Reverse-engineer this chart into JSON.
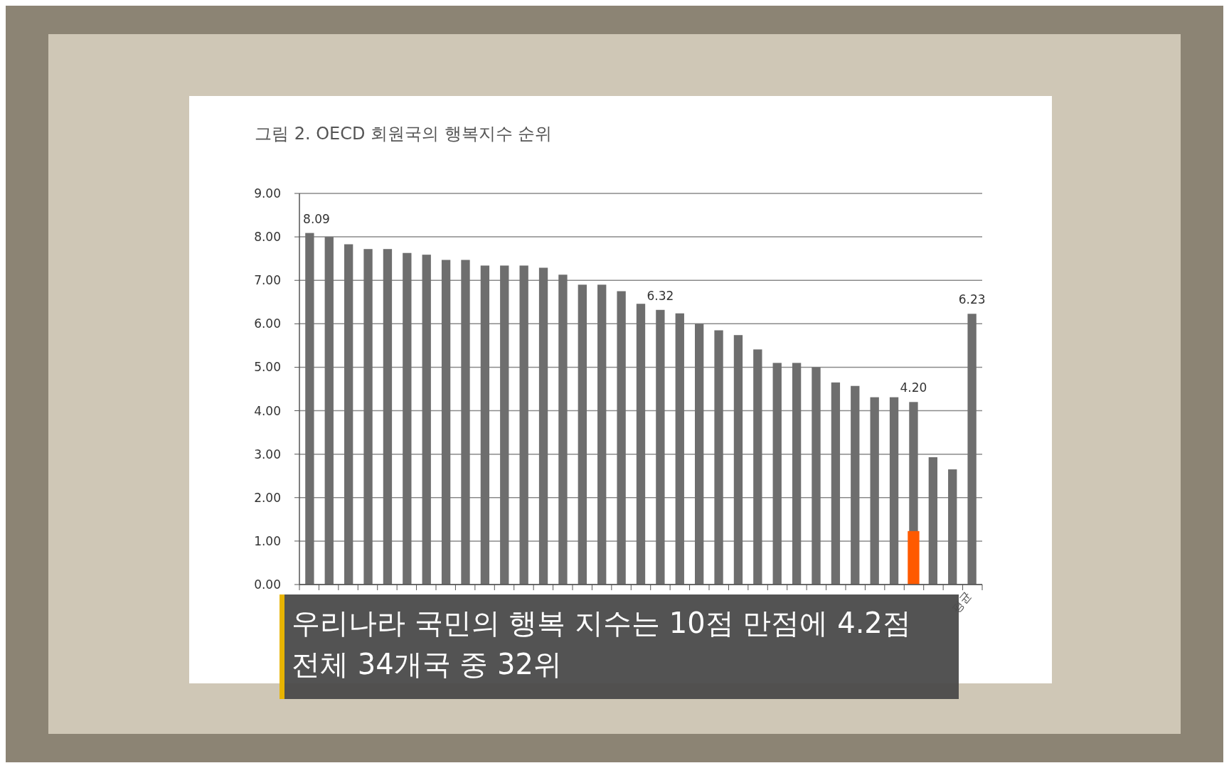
{
  "chart_data": {
    "type": "bar",
    "title": "그림 2.  OECD 회원국의 행복지수 순위",
    "categories": [
      null,
      null,
      null,
      null,
      null,
      null,
      null,
      null,
      null,
      null,
      null,
      null,
      null,
      null,
      null,
      null,
      null,
      null,
      null,
      null,
      null,
      null,
      null,
      null,
      null,
      null,
      null,
      null,
      null,
      null,
      null,
      null,
      null,
      null,
      "평균"
    ],
    "series": [
      {
        "color": "#6e6e6e",
        "values": [
          8.09,
          8.0,
          7.83,
          7.72,
          7.72,
          7.63,
          7.59,
          7.47,
          7.47,
          7.34,
          7.34,
          7.34,
          7.29,
          7.13,
          6.9,
          6.9,
          6.75,
          6.46,
          6.32,
          6.24,
          6.0,
          5.85,
          5.74,
          5.41,
          5.1,
          5.1,
          5.0,
          4.65,
          4.57,
          4.31,
          4.31,
          4.2,
          2.93,
          2.65,
          6.23
        ],
        "value_labels": [
          "8.09",
          null,
          null,
          null,
          null,
          null,
          null,
          null,
          null,
          null,
          null,
          null,
          null,
          null,
          null,
          null,
          null,
          null,
          "6.32",
          null,
          null,
          null,
          null,
          null,
          null,
          null,
          null,
          null,
          null,
          null,
          null,
          "4.20",
          null,
          null,
          "6.23"
        ]
      },
      {
        "color": "#ff5a00",
        "values": [
          null,
          null,
          null,
          null,
          null,
          null,
          null,
          null,
          null,
          null,
          null,
          null,
          null,
          null,
          null,
          null,
          null,
          null,
          null,
          null,
          null,
          null,
          null,
          null,
          null,
          null,
          null,
          null,
          null,
          null,
          null,
          1.23,
          null,
          null,
          null
        ]
      }
    ],
    "ylim": [
      0,
      9
    ],
    "yticks": [
      {
        "value": 0,
        "label": "0.00"
      },
      {
        "value": 1,
        "label": "1.00"
      },
      {
        "value": 2,
        "label": "2.00"
      },
      {
        "value": 3,
        "label": "3.00"
      },
      {
        "value": 4,
        "label": "4.00"
      },
      {
        "value": 5,
        "label": "5.00"
      },
      {
        "value": 6,
        "label": "6.00"
      },
      {
        "value": 7,
        "label": "7.00"
      },
      {
        "value": 8,
        "label": "8.00"
      },
      {
        "value": 9,
        "label": "9.00"
      }
    ],
    "grid": "y",
    "annotations": [
      "우리나라 국민의 행복 지수는 10점 만점에 4.2점",
      "전체 34개국 중 32위"
    ]
  }
}
